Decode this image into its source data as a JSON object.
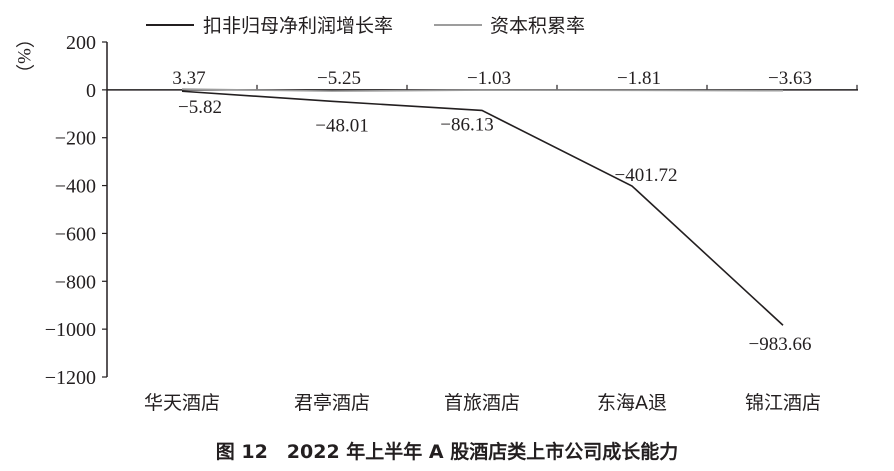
{
  "caption": "图 12　2022 年上半年 A 股酒店类上市公司成长能力",
  "chart_data": {
    "type": "line",
    "categories": [
      "华天酒店",
      "君亭酒店",
      "首旅酒店",
      "东海A退",
      "锦江酒店"
    ],
    "series": [
      {
        "name": "扣非归母净利润增长率",
        "values": [
          -5.82,
          -48.01,
          -86.13,
          -401.72,
          -983.66
        ],
        "color": "#231f20",
        "labels": [
          "−5.82",
          "−48.01",
          "−86.13",
          "−401.72",
          "−983.66"
        ]
      },
      {
        "name": "资本积累率",
        "values": [
          3.37,
          -5.25,
          -1.03,
          -1.81,
          -3.63
        ],
        "color": "#9d9d9d",
        "labels": [
          "3.37",
          "−5.25",
          "−1.03",
          "−1.81",
          "−3.63"
        ]
      }
    ],
    "ylabel": "（%）",
    "ylim": [
      -1200,
      200
    ],
    "yticks": [
      200,
      0,
      -200,
      -400,
      -600,
      -800,
      -1000,
      -1200
    ],
    "ytick_labels": [
      "200",
      "0",
      "−200",
      "−400",
      "−600",
      "−800",
      "−1000",
      "−1200"
    ],
    "legend": "top",
    "grid": false
  }
}
